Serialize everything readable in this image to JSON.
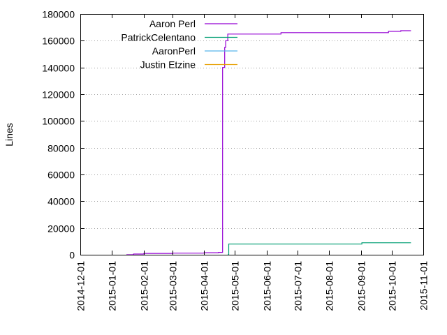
{
  "chart_data": {
    "type": "line",
    "title": "",
    "xlabel": "",
    "ylabel": "Lines",
    "x_axis_type": "date",
    "xlim": [
      "2014-12-01",
      "2015-11-01"
    ],
    "ylim": [
      0,
      180000
    ],
    "y_ticks": [
      0,
      20000,
      40000,
      60000,
      80000,
      100000,
      120000,
      140000,
      160000,
      180000
    ],
    "x_ticks": [
      "2014-12-01",
      "2015-01-01",
      "2015-02-01",
      "2015-03-01",
      "2015-04-01",
      "2015-05-01",
      "2015-06-01",
      "2015-07-01",
      "2015-08-01",
      "2015-09-01",
      "2015-10-01",
      "2015-11-01"
    ],
    "grid": true,
    "legend_position": "top-left",
    "series": [
      {
        "name": "Aaron Perl",
        "color": "#9400d3",
        "step": true,
        "points": [
          [
            "2015-01-15",
            0
          ],
          [
            "2015-01-22",
            500
          ],
          [
            "2015-02-01",
            1000
          ],
          [
            "2015-03-01",
            1200
          ],
          [
            "2015-04-01",
            1500
          ],
          [
            "2015-04-15",
            1800
          ],
          [
            "2015-04-19",
            140000
          ],
          [
            "2015-04-21",
            155000
          ],
          [
            "2015-04-22",
            160000
          ],
          [
            "2015-04-24",
            165000
          ],
          [
            "2015-06-15",
            166000
          ],
          [
            "2015-09-01",
            166000
          ],
          [
            "2015-09-28",
            167000
          ],
          [
            "2015-10-10",
            167500
          ],
          [
            "2015-10-20",
            167500
          ]
        ]
      },
      {
        "name": "PatrickCelentano",
        "color": "#009e73",
        "step": true,
        "points": [
          [
            "2015-04-24",
            0
          ],
          [
            "2015-04-25",
            8000
          ],
          [
            "2015-09-01",
            8000
          ],
          [
            "2015-09-02",
            9000
          ],
          [
            "2015-10-20",
            9000
          ]
        ]
      },
      {
        "name": "AaronPerl",
        "color": "#56b4e9",
        "step": true,
        "points": []
      },
      {
        "name": "Justin Etzine",
        "color": "#e69f00",
        "step": true,
        "points": []
      }
    ]
  }
}
